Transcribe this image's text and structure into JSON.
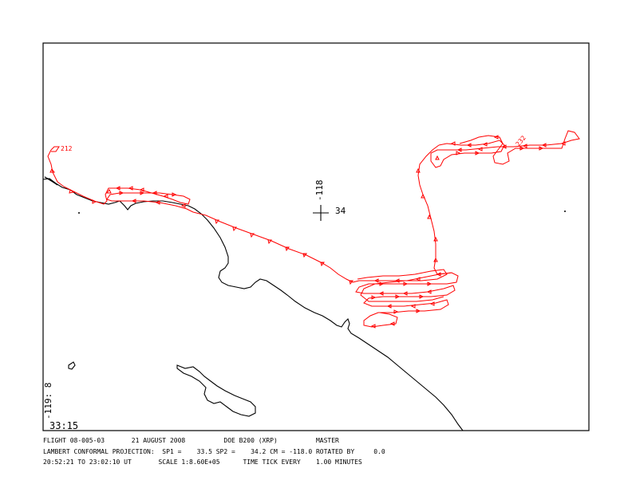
{
  "map": {
    "corner_lon_label": "-119: 8",
    "corner_lat_label": "33:15",
    "center_lon_label": "-118",
    "center_lat_label": "34",
    "track_start_label": "212",
    "track_end_label": "232",
    "colors": {
      "coastline": "#000000",
      "flight_track": "#ff0000",
      "frame": "#000000",
      "background": "#ffffff"
    }
  },
  "footer": {
    "line1": "FLIGHT 08-005-03       21 AUGUST 2008          DOE B200 (XRP)          MASTER",
    "line2": "LAMBERT CONFORMAL PROJECTION:  SP1 =    33.5 SP2 =    34.2 CM = -118.0 ROTATED BY     0.0",
    "line3": "20:52:21 TO 23:02:10 UT       SCALE 1:8.60E+05      TIME TICK EVERY    1.00 MINUTES"
  }
}
